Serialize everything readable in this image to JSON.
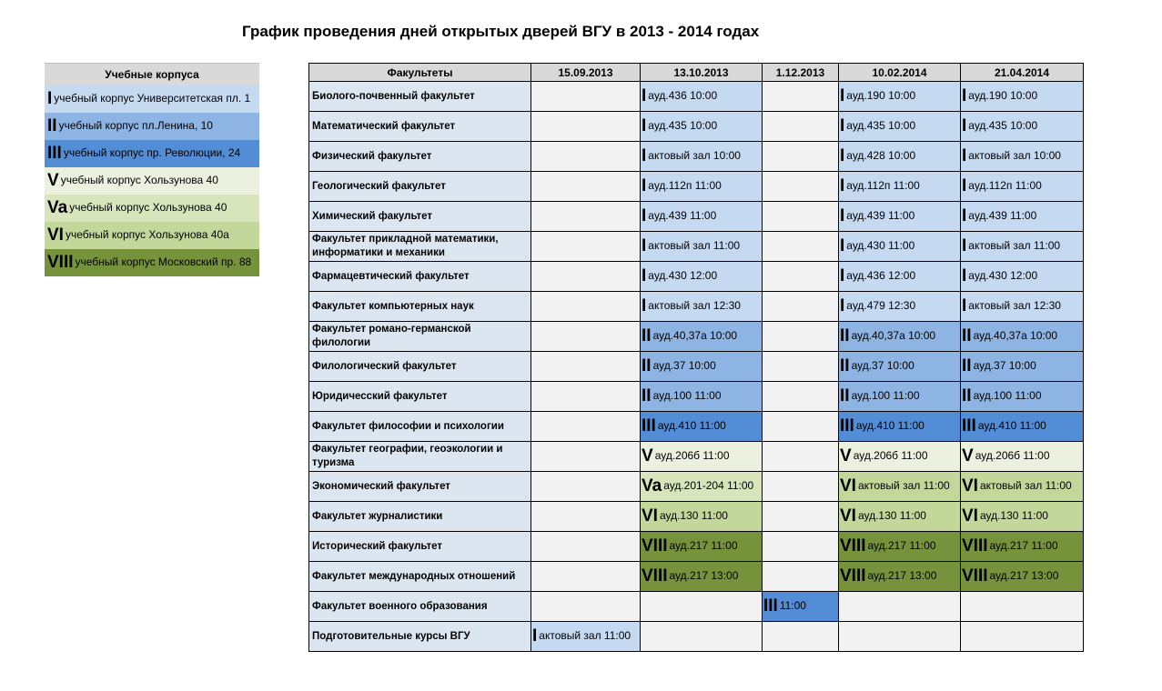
{
  "title": "График проведения дней открытых дверей ВГУ в 2013 - 2014 годах",
  "colors": {
    "I": "#c5d9f1",
    "II": "#8db4e2",
    "III": "#538dd5",
    "V": "#ebf1de",
    "Va": "#d8e4bc",
    "VI": "#c4d79b",
    "VIII": "#76933c",
    "faculty_bg": "#dce6f1",
    "empty_bg": "#f2f2f2",
    "header_bg": "#d9d9d9"
  },
  "legend": {
    "header": "Учебные корпуса",
    "items": [
      {
        "code": "I",
        "text": "учебный корпус Университетская пл. 1"
      },
      {
        "code": "II",
        "text": "учебный корпус пл.Ленина, 10"
      },
      {
        "code": "III",
        "text": "учебный корпус пр. Революции, 24"
      },
      {
        "code": "V",
        "text": "учебный корпус Хользунова 40"
      },
      {
        "code": "Va",
        "text": "учебный корпус Хользунова 40"
      },
      {
        "code": "VI",
        "text": "учебный корпус Хользунова 40а"
      },
      {
        "code": "VIII",
        "text": "учебный корпус Московский пр. 88"
      }
    ]
  },
  "schedule": {
    "headers": [
      "Факультеты",
      "15.09.2013",
      "13.10.2013",
      "1.12.2013",
      "10.02.2014",
      "21.04.2014"
    ],
    "rows": [
      {
        "faculty": "Биолого-почвенный факультет",
        "cells": [
          null,
          {
            "code": "I",
            "text": "ауд.436 10:00"
          },
          null,
          {
            "code": "I",
            "text": "ауд.190 10:00"
          },
          {
            "code": "I",
            "text": "ауд.190 10:00"
          }
        ]
      },
      {
        "faculty": "Математический факультет",
        "cells": [
          null,
          {
            "code": "I",
            "text": "ауд.435 10:00"
          },
          null,
          {
            "code": "I",
            "text": "ауд.435 10:00"
          },
          {
            "code": "I",
            "text": "ауд.435 10:00"
          }
        ]
      },
      {
        "faculty": "Физический факультет",
        "cells": [
          null,
          {
            "code": "I",
            "text": "актовый зал 10:00"
          },
          null,
          {
            "code": "I",
            "text": "ауд.428 10:00"
          },
          {
            "code": "I",
            "text": "актовый зал 10:00"
          }
        ]
      },
      {
        "faculty": "Геологический факультет",
        "cells": [
          null,
          {
            "code": "I",
            "text": "ауд.112п 11:00"
          },
          null,
          {
            "code": "I",
            "text": "ауд.112п 11:00"
          },
          {
            "code": "I",
            "text": "ауд.112п 11:00"
          }
        ]
      },
      {
        "faculty": "Химический факультет",
        "cells": [
          null,
          {
            "code": "I",
            "text": "ауд.439 11:00"
          },
          null,
          {
            "code": "I",
            "text": "ауд.439 11:00"
          },
          {
            "code": "I",
            "text": "ауд.439 11:00"
          }
        ]
      },
      {
        "faculty": "Факультет прикладной математики, информатики и механики",
        "cells": [
          null,
          {
            "code": "I",
            "text": "актовый зал 11:00"
          },
          null,
          {
            "code": "I",
            "text": "ауд.430 11:00"
          },
          {
            "code": "I",
            "text": "актовый зал 11:00"
          }
        ]
      },
      {
        "faculty": "Фармацевтический факультет",
        "cells": [
          null,
          {
            "code": "I",
            "text": "ауд.430 12:00"
          },
          null,
          {
            "code": "I",
            "text": "ауд.436 12:00"
          },
          {
            "code": "I",
            "text": "ауд.430 12:00"
          }
        ]
      },
      {
        "faculty": "Факультет компьютерных наук",
        "cells": [
          null,
          {
            "code": "I",
            "text": "актовый зал 12:30"
          },
          null,
          {
            "code": "I",
            "text": "ауд.479 12:30"
          },
          {
            "code": "I",
            "text": "актовый зал 12:30"
          }
        ]
      },
      {
        "faculty": "Факультет романо-германской филологии",
        "cells": [
          null,
          {
            "code": "II",
            "text": "ауд.40,37а 10:00"
          },
          null,
          {
            "code": "II",
            "text": "ауд.40,37а 10:00"
          },
          {
            "code": "II",
            "text": "ауд.40,37а 10:00"
          }
        ]
      },
      {
        "faculty": "Филологический факультет",
        "cells": [
          null,
          {
            "code": "II",
            "text": "ауд.37 10:00"
          },
          null,
          {
            "code": "II",
            "text": "ауд.37 10:00"
          },
          {
            "code": "II",
            "text": "ауд.37 10:00"
          }
        ]
      },
      {
        "faculty": "Юридичесский факультет",
        "cells": [
          null,
          {
            "code": "II",
            "text": "ауд.100 11:00"
          },
          null,
          {
            "code": "II",
            "text": "ауд.100 11:00"
          },
          {
            "code": "II",
            "text": "ауд.100 11:00"
          }
        ]
      },
      {
        "faculty": "Факультет философии и психологии",
        "cells": [
          null,
          {
            "code": "III",
            "text": "ауд.410 11:00"
          },
          null,
          {
            "code": "III",
            "text": "ауд.410 11:00"
          },
          {
            "code": "III",
            "text": "ауд.410 11:00"
          }
        ]
      },
      {
        "faculty": "Факультет географии, геоэкологии и туризма",
        "cells": [
          null,
          {
            "code": "V",
            "text": "ауд.206б 11:00"
          },
          null,
          {
            "code": "V",
            "text": "ауд.206б 11:00"
          },
          {
            "code": "V",
            "text": "ауд.206б 11:00"
          }
        ]
      },
      {
        "faculty": "Экономический факультет",
        "cells": [
          null,
          {
            "code": "Va",
            "text": "ауд.201-204 11:00"
          },
          null,
          {
            "code": "VI",
            "text": "актовый зал 11:00"
          },
          {
            "code": "VI",
            "text": "актовый зал 11:00"
          }
        ]
      },
      {
        "faculty": "Факультет журналистики",
        "cells": [
          null,
          {
            "code": "VI",
            "text": "ауд.130 11:00"
          },
          null,
          {
            "code": "VI",
            "text": "ауд.130 11:00"
          },
          {
            "code": "VI",
            "text": "ауд.130 11:00"
          }
        ]
      },
      {
        "faculty": "Исторический факультет",
        "cells": [
          null,
          {
            "code": "VIII",
            "text": "ауд.217 11:00"
          },
          null,
          {
            "code": "VIII",
            "text": "ауд.217 11:00"
          },
          {
            "code": "VIII",
            "text": "ауд.217 11:00"
          }
        ]
      },
      {
        "faculty": "Факультет международных отношений",
        "cells": [
          null,
          {
            "code": "VIII",
            "text": "ауд.217 13:00"
          },
          null,
          {
            "code": "VIII",
            "text": "ауд.217 13:00"
          },
          {
            "code": "VIII",
            "text": "ауд.217 13:00"
          }
        ]
      },
      {
        "faculty": "Факультет военного образования",
        "cells": [
          null,
          null,
          {
            "code": "III",
            "text": "11:00"
          },
          null,
          null
        ]
      },
      {
        "faculty": "Подготовительные курсы ВГУ",
        "cells": [
          {
            "code": "I",
            "text": "актовый зал 11:00"
          },
          null,
          null,
          null,
          null
        ]
      }
    ]
  }
}
